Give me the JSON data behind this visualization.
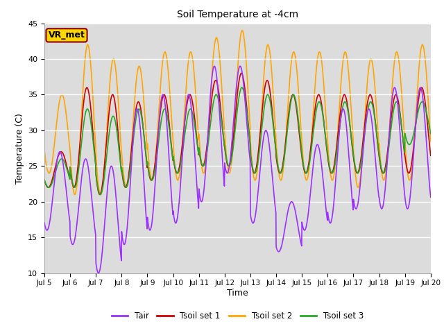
{
  "title": "Soil Temperature at -4cm",
  "xlabel": "Time",
  "ylabel": "Temperature (C)",
  "ylim": [
    10,
    45
  ],
  "yticks": [
    10,
    15,
    20,
    25,
    30,
    35,
    40,
    45
  ],
  "xlim_days": [
    5,
    20
  ],
  "xtick_days": [
    5,
    6,
    7,
    8,
    9,
    10,
    11,
    12,
    13,
    14,
    15,
    16,
    17,
    18,
    19,
    20
  ],
  "xtick_labels": [
    "Jul 5",
    "Jul 6",
    "Jul 7",
    "Jul 8",
    "Jul 9",
    "Jul 10",
    "Jul 11",
    "Jul 12",
    "Jul 13",
    "Jul 14",
    "Jul 15",
    "Jul 16",
    "Jul 17",
    "Jul 18",
    "Jul 19",
    "Jul 20"
  ],
  "legend_entries": [
    "Tair",
    "Tsoil set 1",
    "Tsoil set 2",
    "Tsoil set 3"
  ],
  "colors": {
    "Tair": "#9B30FF",
    "Tsoil1": "#CC0000",
    "Tsoil2": "#FFA500",
    "Tsoil3": "#22AA22"
  },
  "annotation_text": "VR_met",
  "annotation_bg": "#FFD700",
  "annotation_border": "#8B0000",
  "plot_bg": "#DCDCDC",
  "fig_bg": "#FFFFFF",
  "linewidth": 1.2,
  "grid_color": "#FFFFFF",
  "grid_linewidth": 1.0
}
